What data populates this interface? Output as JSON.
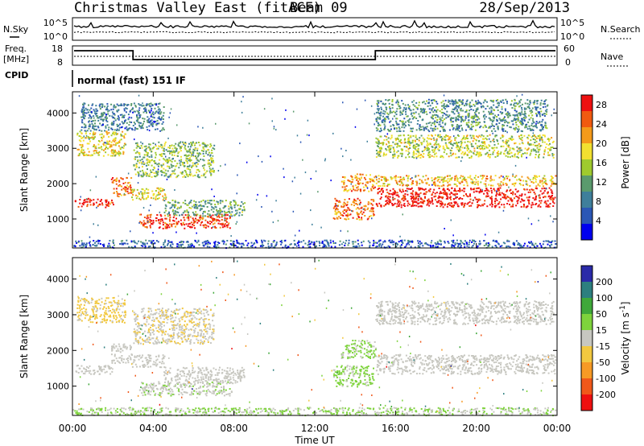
{
  "title": "Christmas Valley East (fitACF)",
  "beam": "Beam 09",
  "date": "28/Sep/2013",
  "header": {
    "nsky_label": "N.Sky",
    "nsearch_label": "N.Search",
    "noise_ticks": [
      "10^5",
      "10^0"
    ],
    "freq_label_1": "Freq.",
    "freq_label_2": "[MHz]",
    "freq_ticks": [
      "18",
      "8"
    ],
    "nave_label": "Nave",
    "nave_ticks": [
      "60",
      "0"
    ],
    "cpid_label": "CPID",
    "cpid_value": "normal (fast) 151 IF"
  },
  "colors": {
    "power": [
      "#0000ee",
      "#2b57b5",
      "#3f7f9b",
      "#5a9a6d",
      "#9fca2e",
      "#f2e030",
      "#f49a1a",
      "#f05a10",
      "#ee1010"
    ],
    "velocity": [
      "#ee1010",
      "#f0581a",
      "#f79a25",
      "#f2c840",
      "#c7c7c0",
      "#7ed33c",
      "#3fa83a",
      "#2d7f7f",
      "#2a2aa8"
    ]
  },
  "chart_data": [
    {
      "type": "heatmap",
      "quantity": "power",
      "ylabel": "Slant Range [km]",
      "xlabel": "Time UT",
      "x_ticks": [
        "00:00",
        "04:00",
        "08:00",
        "12:00",
        "16:00",
        "20:00",
        "00:00"
      ],
      "y_ticks": [
        1000,
        2000,
        3000,
        4000
      ],
      "xlim_hours": [
        0,
        24
      ],
      "ylim_km": [
        180,
        4600
      ],
      "colorbar_label": "Power [dB]",
      "colorbar_ticks": [
        4,
        8,
        12,
        16,
        20,
        24,
        28
      ],
      "colorbar_range": [
        0,
        30
      ],
      "regions": [
        {
          "t": [
            0.1,
            2.0
          ],
          "r": [
            1350,
            1600
          ],
          "v": 28
        },
        {
          "t": [
            1.9,
            2.9
          ],
          "r": [
            1650,
            2200
          ],
          "v": 24
        },
        {
          "t": [
            2.9,
            4.6
          ],
          "r": [
            1550,
            1900
          ],
          "v": 18
        },
        {
          "t": [
            3.3,
            7.9
          ],
          "r": [
            750,
            1150
          ],
          "v": 27
        },
        {
          "t": [
            4.5,
            8.5
          ],
          "r": [
            1100,
            1550
          ],
          "v": 12
        },
        {
          "t": [
            0.2,
            2.6
          ],
          "r": [
            2800,
            3500
          ],
          "v": 18
        },
        {
          "t": [
            3.0,
            7.0
          ],
          "r": [
            2200,
            3200
          ],
          "v": 14
        },
        {
          "t": [
            0.4,
            4.5
          ],
          "r": [
            3500,
            4300
          ],
          "v": 8
        },
        {
          "t": [
            12.9,
            14.9
          ],
          "r": [
            1000,
            1600
          ],
          "v": 24
        },
        {
          "t": [
            13.3,
            15.0
          ],
          "r": [
            1800,
            2300
          ],
          "v": 22
        },
        {
          "t": [
            15.0,
            23.9
          ],
          "r": [
            1350,
            1900
          ],
          "v": 29
        },
        {
          "t": [
            15.0,
            23.9
          ],
          "r": [
            1950,
            2250
          ],
          "v": 20
        },
        {
          "t": [
            15.0,
            23.8
          ],
          "r": [
            2750,
            3400
          ],
          "v": 16
        },
        {
          "t": [
            15.0,
            23.5
          ],
          "r": [
            3500,
            4400
          ],
          "v": 10
        },
        {
          "t": [
            0.0,
            23.9
          ],
          "r": [
            200,
            420
          ],
          "v": 6
        }
      ]
    },
    {
      "type": "heatmap",
      "quantity": "velocity",
      "ylabel": "Slant Range [km]",
      "xlabel": "Time UT",
      "x_ticks": [
        "00:00",
        "04:00",
        "08:00",
        "12:00",
        "16:00",
        "20:00",
        "00:00"
      ],
      "y_ticks": [
        1000,
        2000,
        3000,
        4000
      ],
      "xlim_hours": [
        0,
        24
      ],
      "ylim_km": [
        180,
        4600
      ],
      "colorbar_label": "Velocity [m s^-1]",
      "colorbar_ticks": [
        200,
        100,
        50,
        15,
        -15,
        -50,
        -100,
        -200
      ],
      "colorbar_range": [
        -250,
        250
      ],
      "regions": [
        {
          "t": [
            0.1,
            2.0
          ],
          "r": [
            1350,
            1600
          ],
          "v": 0
        },
        {
          "t": [
            1.9,
            2.9
          ],
          "r": [
            1650,
            2200
          ],
          "v": 0
        },
        {
          "t": [
            2.9,
            4.6
          ],
          "r": [
            1550,
            1900
          ],
          "v": 0
        },
        {
          "t": [
            3.3,
            7.9
          ],
          "r": [
            750,
            1150
          ],
          "v": 20
        },
        {
          "t": [
            4.5,
            8.5
          ],
          "r": [
            1100,
            1550
          ],
          "v": 0
        },
        {
          "t": [
            0.2,
            2.6
          ],
          "r": [
            2800,
            3500
          ],
          "v": -40
        },
        {
          "t": [
            3.0,
            7.0
          ],
          "r": [
            2200,
            3200
          ],
          "v": -20
        },
        {
          "t": [
            12.9,
            14.9
          ],
          "r": [
            1000,
            1600
          ],
          "v": 40
        },
        {
          "t": [
            13.3,
            15.0
          ],
          "r": [
            1800,
            2300
          ],
          "v": 35
        },
        {
          "t": [
            15.0,
            23.9
          ],
          "r": [
            1350,
            1900
          ],
          "v": 0
        },
        {
          "t": [
            15.0,
            23.8
          ],
          "r": [
            2750,
            3400
          ],
          "v": 0
        },
        {
          "t": [
            0.0,
            23.9
          ],
          "r": [
            200,
            420
          ],
          "v": 30
        }
      ]
    }
  ]
}
